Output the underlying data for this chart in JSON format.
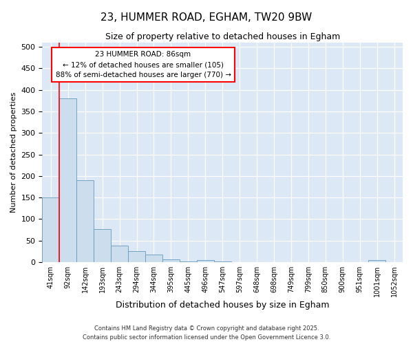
{
  "title": "23, HUMMER ROAD, EGHAM, TW20 9BW",
  "subtitle": "Size of property relative to detached houses in Egham",
  "xlabel": "Distribution of detached houses by size in Egham",
  "ylabel": "Number of detached properties",
  "bin_labels": [
    "41sqm",
    "92sqm",
    "142sqm",
    "193sqm",
    "243sqm",
    "294sqm",
    "344sqm",
    "395sqm",
    "445sqm",
    "496sqm",
    "547sqm",
    "597sqm",
    "648sqm",
    "698sqm",
    "749sqm",
    "799sqm",
    "850sqm",
    "900sqm",
    "951sqm",
    "1001sqm",
    "1052sqm"
  ],
  "bar_values": [
    150,
    380,
    190,
    77,
    38,
    25,
    17,
    7,
    2,
    5,
    2,
    0,
    0,
    0,
    0,
    0,
    0,
    0,
    0,
    5,
    0
  ],
  "bar_color": "#ccdded",
  "bar_edge_color": "#6699bb",
  "red_line_x": 0.5,
  "annotation_text": "23 HUMMER ROAD: 86sqm\n← 12% of detached houses are smaller (105)\n88% of semi-detached houses are larger (770) →",
  "ylim": [
    0,
    510
  ],
  "yticks": [
    0,
    50,
    100,
    150,
    200,
    250,
    300,
    350,
    400,
    450,
    500
  ],
  "plot_bg_color": "#dce8f5",
  "fig_bg_color": "#ffffff",
  "grid_color": "#ffffff",
  "footer_line1": "Contains HM Land Registry data © Crown copyright and database right 2025.",
  "footer_line2": "Contains public sector information licensed under the Open Government Licence 3.0."
}
